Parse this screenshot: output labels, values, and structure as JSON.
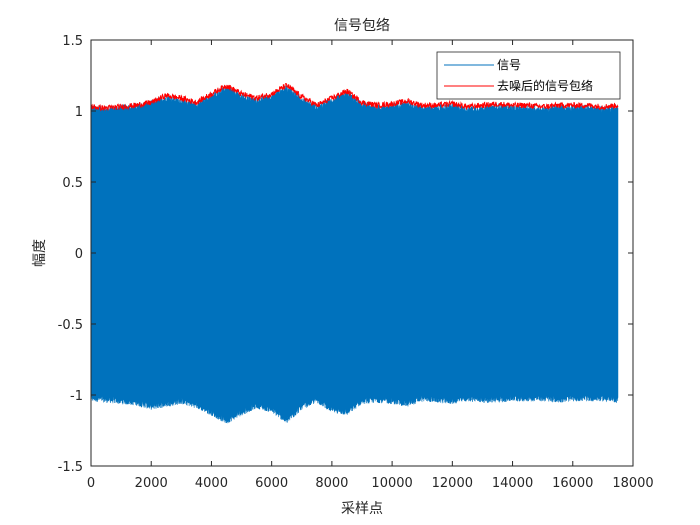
{
  "chart_data": {
    "type": "line",
    "title": "信号包络",
    "xlabel": "采样点",
    "ylabel": "幅度",
    "xlim": [
      0,
      18000
    ],
    "ylim": [
      -1.5,
      1.5
    ],
    "xticks": [
      "0",
      "2000",
      "4000",
      "6000",
      "8000",
      "10000",
      "12000",
      "14000",
      "16000",
      "18000"
    ],
    "yticks": [
      "1.5",
      "1",
      "0.5",
      "0",
      "-0.5",
      "-1",
      "-1.5"
    ],
    "x_range_of_data": [
      0,
      17500
    ],
    "grid": false,
    "legend_placement": "top-right",
    "series": [
      {
        "name": "信号",
        "color": "#0072BD",
        "kind": "oscillating-signal",
        "envelope_x": [
          0,
          500,
          1000,
          1500,
          2000,
          2500,
          3000,
          3500,
          4000,
          4500,
          5000,
          5500,
          6000,
          6500,
          7000,
          7500,
          8000,
          8500,
          9000,
          9500,
          10000,
          10500,
          11000,
          11500,
          12000,
          12500,
          13000,
          13500,
          14000,
          14500,
          15000,
          15500,
          16000,
          16500,
          17000,
          17500
        ],
        "envelope_upper": [
          1.02,
          1.01,
          1.02,
          1.03,
          1.05,
          1.09,
          1.07,
          1.04,
          1.1,
          1.16,
          1.1,
          1.07,
          1.1,
          1.16,
          1.08,
          1.02,
          1.07,
          1.12,
          1.04,
          1.02,
          1.03,
          1.05,
          1.02,
          1.02,
          1.03,
          1.01,
          1.02,
          1.03,
          1.02,
          1.02,
          1.01,
          1.02,
          1.02,
          1.02,
          1.01,
          1.02
        ],
        "envelope_lower": [
          -1.02,
          -1.03,
          -1.04,
          -1.05,
          -1.08,
          -1.06,
          -1.04,
          -1.07,
          -1.12,
          -1.18,
          -1.12,
          -1.07,
          -1.1,
          -1.18,
          -1.08,
          -1.03,
          -1.1,
          -1.12,
          -1.04,
          -1.03,
          -1.04,
          -1.06,
          -1.02,
          -1.03,
          -1.04,
          -1.02,
          -1.03,
          -1.03,
          -1.02,
          -1.02,
          -1.02,
          -1.03,
          -1.02,
          -1.02,
          -1.02,
          -1.03
        ]
      },
      {
        "name": "去噪后的信号包络",
        "color": "#FF0000",
        "kind": "envelope",
        "x": [
          0,
          500,
          1000,
          1500,
          2000,
          2500,
          3000,
          3500,
          4000,
          4500,
          5000,
          5500,
          6000,
          6500,
          7000,
          7500,
          8000,
          8500,
          9000,
          9500,
          10000,
          10500,
          11000,
          11500,
          12000,
          12500,
          13000,
          13500,
          14000,
          14500,
          15000,
          15500,
          16000,
          16500,
          17000,
          17500
        ],
        "y": [
          1.03,
          1.02,
          1.03,
          1.04,
          1.06,
          1.11,
          1.09,
          1.06,
          1.12,
          1.18,
          1.12,
          1.09,
          1.12,
          1.18,
          1.1,
          1.04,
          1.09,
          1.14,
          1.06,
          1.04,
          1.05,
          1.07,
          1.04,
          1.04,
          1.05,
          1.03,
          1.04,
          1.05,
          1.04,
          1.04,
          1.03,
          1.04,
          1.04,
          1.04,
          1.03,
          1.04
        ]
      }
    ]
  }
}
